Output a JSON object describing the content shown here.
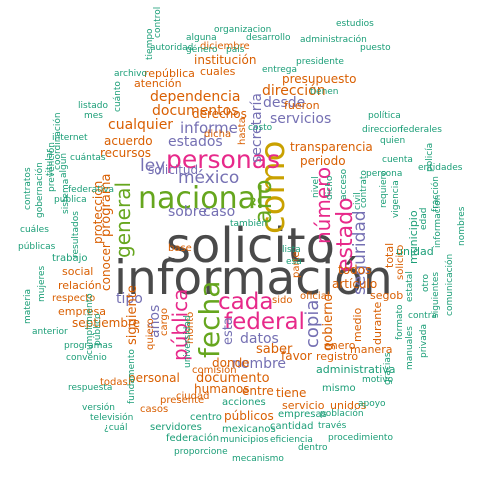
{
  "palette": {
    "gray": "#4a4a4a",
    "orange": "#d95f02",
    "teal": "#1b9e77",
    "purple": "#7570b3",
    "magenta": "#e7298a",
    "green": "#66a61e",
    "gold": "#c9a100",
    "brown": "#a6761d"
  },
  "words": [
    {
      "text": "solicito",
      "color": "gray"
    },
    {
      "text": "información",
      "color": "gray"
    },
    {
      "text": "como",
      "color": "gold"
    },
    {
      "text": "nacional",
      "color": "green"
    },
    {
      "text": "personas",
      "color": "magenta"
    },
    {
      "text": "fecha",
      "color": "green"
    },
    {
      "text": "federal",
      "color": "magenta"
    },
    {
      "text": "cada",
      "color": "magenta"
    },
    {
      "text": "año",
      "color": "green"
    },
    {
      "text": "estado",
      "color": "magenta"
    },
    {
      "text": "número",
      "color": "magenta"
    },
    {
      "text": "general",
      "color": "green"
    },
    {
      "text": "pública",
      "color": "magenta"
    },
    {
      "text": "méxico",
      "color": "purple"
    },
    {
      "text": "copia",
      "color": "purple"
    },
    {
      "text": "seguridad",
      "color": "purple"
    },
    {
      "text": "ley",
      "color": "purple"
    },
    {
      "text": "informe",
      "color": "purple"
    },
    {
      "text": "secretaría",
      "color": "purple"
    },
    {
      "text": "dependencia",
      "color": "orange"
    },
    {
      "text": "documentos",
      "color": "orange"
    },
    {
      "text": "desde",
      "color": "purple"
    },
    {
      "text": "dirección",
      "color": "orange"
    },
    {
      "text": "servicios",
      "color": "purple"
    },
    {
      "text": "cualquier",
      "color": "orange"
    },
    {
      "text": "estados",
      "color": "purple"
    },
    {
      "text": "sobre",
      "color": "purple"
    },
    {
      "text": "caso",
      "color": "purple"
    },
    {
      "text": "solicitud",
      "color": "purple"
    },
    {
      "text": "programa",
      "color": "orange"
    },
    {
      "text": "tipo",
      "color": "purple"
    },
    {
      "text": "años",
      "color": "purple"
    },
    {
      "text": "siguiente",
      "color": "orange"
    },
    {
      "text": "datos",
      "color": "purple"
    },
    {
      "text": "nombre",
      "color": "purple"
    },
    {
      "text": "esta",
      "color": "purple"
    },
    {
      "text": "gobierno",
      "color": "orange"
    },
    {
      "text": "saber",
      "color": "orange"
    },
    {
      "text": "documento",
      "color": "orange"
    },
    {
      "text": "personal",
      "color": "orange"
    },
    {
      "text": "derechos",
      "color": "orange"
    },
    {
      "text": "atención",
      "color": "orange"
    },
    {
      "text": "institución",
      "color": "orange"
    },
    {
      "text": "presupuesto",
      "color": "orange"
    },
    {
      "text": "transparencia",
      "color": "orange"
    },
    {
      "text": "periodo",
      "color": "orange"
    },
    {
      "text": "recursos",
      "color": "orange"
    },
    {
      "text": "acuerdo",
      "color": "orange"
    },
    {
      "text": "protección",
      "color": "orange"
    },
    {
      "text": "conocer",
      "color": "orange"
    },
    {
      "text": "septiembre",
      "color": "orange"
    },
    {
      "text": "social",
      "color": "orange"
    },
    {
      "text": "relación",
      "color": "orange"
    },
    {
      "text": "empresa",
      "color": "orange"
    },
    {
      "text": "respecto",
      "color": "orange"
    },
    {
      "text": "trabajo",
      "color": "teal"
    },
    {
      "text": "humanos",
      "color": "orange"
    },
    {
      "text": "donde",
      "color": "orange"
    },
    {
      "text": "entre",
      "color": "orange"
    },
    {
      "text": "tiene",
      "color": "orange"
    },
    {
      "text": "favor",
      "color": "orange"
    },
    {
      "text": "registro",
      "color": "orange"
    },
    {
      "text": "enero",
      "color": "orange"
    },
    {
      "text": "manera",
      "color": "orange"
    },
    {
      "text": "artículo",
      "color": "orange"
    },
    {
      "text": "todos",
      "color": "orange"
    },
    {
      "text": "públicos",
      "color": "orange"
    },
    {
      "text": "servicio",
      "color": "orange"
    },
    {
      "text": "unidos",
      "color": "orange"
    },
    {
      "text": "segob",
      "color": "orange"
    },
    {
      "text": "medio",
      "color": "orange"
    },
    {
      "text": "durante",
      "color": "orange"
    },
    {
      "text": "total",
      "color": "orange"
    },
    {
      "text": "solicito",
      "color": "orange"
    },
    {
      "text": "república",
      "color": "orange"
    },
    {
      "text": "cuales",
      "color": "orange"
    },
    {
      "text": "diciembre",
      "color": "orange"
    },
    {
      "text": "fueron",
      "color": "orange"
    },
    {
      "text": "hasta",
      "color": "orange"
    },
    {
      "text": "dicha",
      "color": "orange"
    },
    {
      "text": "monto",
      "color": "orange"
    },
    {
      "text": "sido",
      "color": "orange"
    },
    {
      "text": "oficial",
      "color": "orange"
    },
    {
      "text": "base",
      "color": "orange"
    },
    {
      "text": "parte",
      "color": "orange"
    },
    {
      "text": "cargo",
      "color": "orange"
    },
    {
      "text": "quiero",
      "color": "orange"
    },
    {
      "text": "todas",
      "color": "orange"
    },
    {
      "text": "ciudad",
      "color": "orange"
    },
    {
      "text": "comisión",
      "color": "orange"
    },
    {
      "text": "presente",
      "color": "orange"
    },
    {
      "text": "casos",
      "color": "orange"
    },
    {
      "text": "centro",
      "color": "teal"
    },
    {
      "text": "acciones",
      "color": "teal"
    },
    {
      "text": "mexicanos",
      "color": "teal"
    },
    {
      "text": "servidores",
      "color": "teal"
    },
    {
      "text": "federación",
      "color": "teal"
    },
    {
      "text": "proporcione",
      "color": "teal"
    },
    {
      "text": "cantidad",
      "color": "teal"
    },
    {
      "text": "través",
      "color": "teal"
    },
    {
      "text": "procedimiento",
      "color": "teal"
    },
    {
      "text": "mecanismo",
      "color": "teal"
    },
    {
      "text": "empresas",
      "color": "teal"
    },
    {
      "text": "eficiencia",
      "color": "teal"
    },
    {
      "text": "municipios",
      "color": "teal"
    },
    {
      "text": "dentro",
      "color": "teal"
    },
    {
      "text": "población",
      "color": "teal"
    },
    {
      "text": "apoyo",
      "color": "teal"
    },
    {
      "text": "administrativa",
      "color": "teal"
    },
    {
      "text": "mismo",
      "color": "teal"
    },
    {
      "text": "motivo",
      "color": "teal"
    },
    {
      "text": "gracias",
      "color": "teal"
    },
    {
      "text": "manuales",
      "color": "teal"
    },
    {
      "text": "privada",
      "color": "teal"
    },
    {
      "text": "contra",
      "color": "teal"
    },
    {
      "text": "formato",
      "color": "teal"
    },
    {
      "text": "estatal",
      "color": "teal"
    },
    {
      "text": "municipio",
      "color": "teal"
    },
    {
      "text": "unidad",
      "color": "teal"
    },
    {
      "text": "siguientes",
      "color": "teal"
    },
    {
      "text": "información",
      "color": "teal"
    },
    {
      "text": "comunicación",
      "color": "teal"
    },
    {
      "text": "nombres",
      "color": "teal"
    },
    {
      "text": "edad",
      "color": "teal"
    },
    {
      "text": "fracción",
      "color": "teal"
    },
    {
      "text": "otro",
      "color": "teal"
    },
    {
      "text": "entidades",
      "color": "teal"
    },
    {
      "text": "persona",
      "color": "teal"
    },
    {
      "text": "quien",
      "color": "teal"
    },
    {
      "text": "cuenta",
      "color": "teal"
    },
    {
      "text": "contrato",
      "color": "teal"
    },
    {
      "text": "requiero",
      "color": "teal"
    },
    {
      "text": "vigencia",
      "color": "teal"
    },
    {
      "text": "acceso",
      "color": "teal"
    },
    {
      "text": "civil",
      "color": "teal"
    },
    {
      "text": "nivel",
      "color": "teal"
    },
    {
      "text": "dicho",
      "color": "teal"
    },
    {
      "text": "lista",
      "color": "teal"
    },
    {
      "text": "esa",
      "color": "teal"
    },
    {
      "text": "política",
      "color": "teal"
    },
    {
      "text": "direccion",
      "color": "teal"
    },
    {
      "text": "federales",
      "color": "teal"
    },
    {
      "text": "tienen",
      "color": "teal"
    },
    {
      "text": "puesto",
      "color": "teal"
    },
    {
      "text": "presidente",
      "color": "teal"
    },
    {
      "text": "entrega",
      "color": "teal"
    },
    {
      "text": "país",
      "color": "teal"
    },
    {
      "text": "administración",
      "color": "teal"
    },
    {
      "text": "desarrollo",
      "color": "teal"
    },
    {
      "text": "estudios",
      "color": "teal"
    },
    {
      "text": "organizacion",
      "color": "teal"
    },
    {
      "text": "alguna",
      "color": "teal"
    },
    {
      "text": "autoridad",
      "color": "teal"
    },
    {
      "text": "tiempo",
      "color": "teal"
    },
    {
      "text": "género",
      "color": "teal"
    },
    {
      "text": "archivo",
      "color": "teal"
    },
    {
      "text": "control",
      "color": "teal"
    },
    {
      "text": "cuánto",
      "color": "teal"
    },
    {
      "text": "costo",
      "color": "teal"
    },
    {
      "text": "mes",
      "color": "teal"
    },
    {
      "text": "internet",
      "color": "teal"
    },
    {
      "text": "listado",
      "color": "teal"
    },
    {
      "text": "cuántas",
      "color": "teal"
    },
    {
      "text": "titular",
      "color": "teal"
    },
    {
      "text": "algún",
      "color": "teal"
    },
    {
      "text": "prevención",
      "color": "teal"
    },
    {
      "text": "gobernación",
      "color": "teal"
    },
    {
      "text": "coordinación",
      "color": "teal"
    },
    {
      "text": "federativa",
      "color": "teal"
    },
    {
      "text": "publica",
      "color": "teal"
    },
    {
      "text": "sistema",
      "color": "teal"
    },
    {
      "text": "contratos",
      "color": "teal"
    },
    {
      "text": "cuáles",
      "color": "teal"
    },
    {
      "text": "públicas",
      "color": "teal"
    },
    {
      "text": "resultados",
      "color": "teal"
    },
    {
      "text": "mujeres",
      "color": "teal"
    },
    {
      "text": "materia",
      "color": "teal"
    },
    {
      "text": "anterior",
      "color": "teal"
    },
    {
      "text": "cumplimiento",
      "color": "teal"
    },
    {
      "text": "programas",
      "color": "teal"
    },
    {
      "text": "convenio",
      "color": "teal"
    },
    {
      "text": "público",
      "color": "teal"
    },
    {
      "text": "respuesta",
      "color": "teal"
    },
    {
      "text": "versión",
      "color": "teal"
    },
    {
      "text": "fundamento",
      "color": "teal"
    },
    {
      "text": "televisión",
      "color": "teal"
    },
    {
      "text": "¿cuál",
      "color": "teal"
    },
    {
      "text": "universidad",
      "color": "teal"
    },
    {
      "text": "también",
      "color": "teal"
    },
    {
      "text": "policía",
      "color": "teal"
    },
    {
      "text": "cuál",
      "color": "teal"
    },
    {
      "text": "indique",
      "color": "teal"
    }
  ]
}
